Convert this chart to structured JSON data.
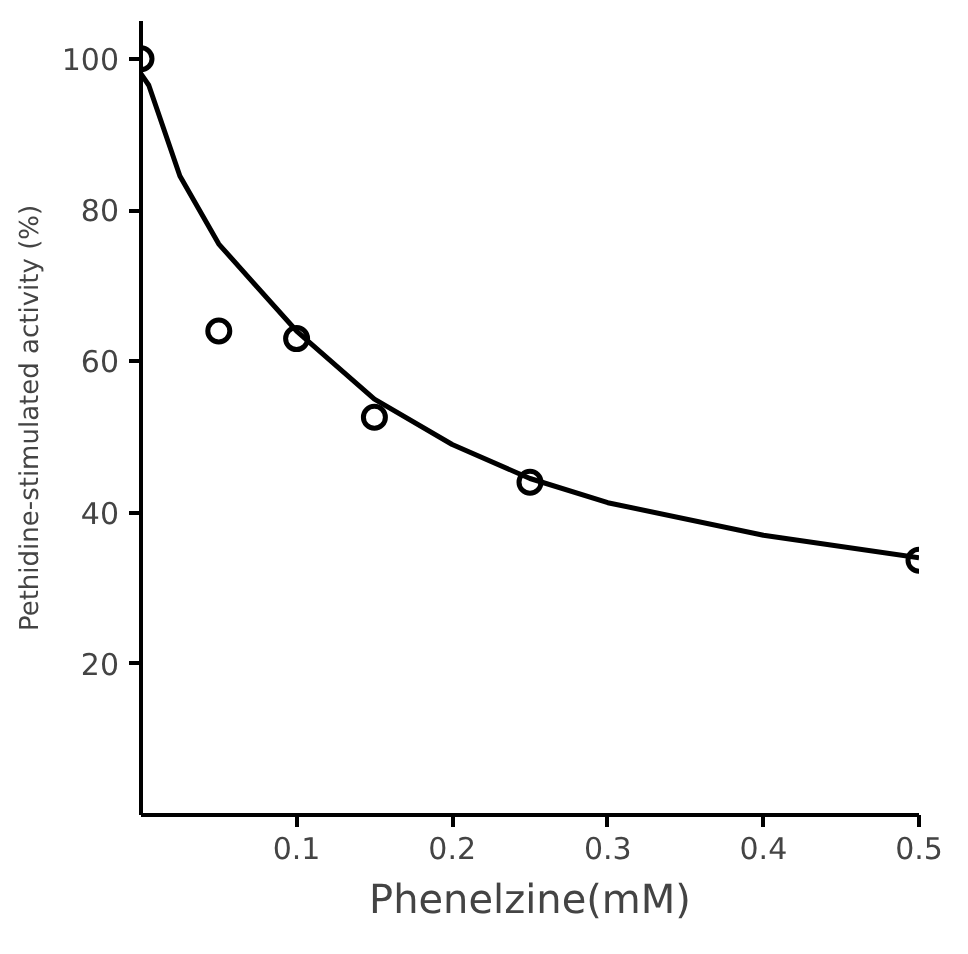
{
  "chart_data": {
    "type": "scatter",
    "xlabel": "Phenelzine(mM)",
    "ylabel": "Pethidine-stimulated activity (%)",
    "xlim": [
      0,
      0.5
    ],
    "ylim": [
      0,
      105
    ],
    "xticks": [
      0.1,
      0.2,
      0.3,
      0.4,
      0.5
    ],
    "yticks": [
      20,
      40,
      60,
      80,
      100
    ],
    "grid": false,
    "series": [
      {
        "color": "#000000",
        "marker": "circle",
        "x": [
          0,
          0.05,
          0.1,
          0.15,
          0.25,
          0.5
        ],
        "values": [
          100,
          64,
          63,
          52.6,
          44,
          33.7
        ]
      },
      {
        "type": "line",
        "color": "#000000",
        "marker": "none",
        "line_style": "solid",
        "x": [
          0,
          0.005,
          0.025,
          0.05,
          0.1,
          0.15,
          0.2,
          0.25,
          0.3,
          0.4,
          0.5
        ],
        "values": [
          98,
          96.5,
          84.5,
          75.5,
          64,
          55,
          49,
          44.5,
          41.3,
          37,
          34
        ]
      }
    ]
  }
}
